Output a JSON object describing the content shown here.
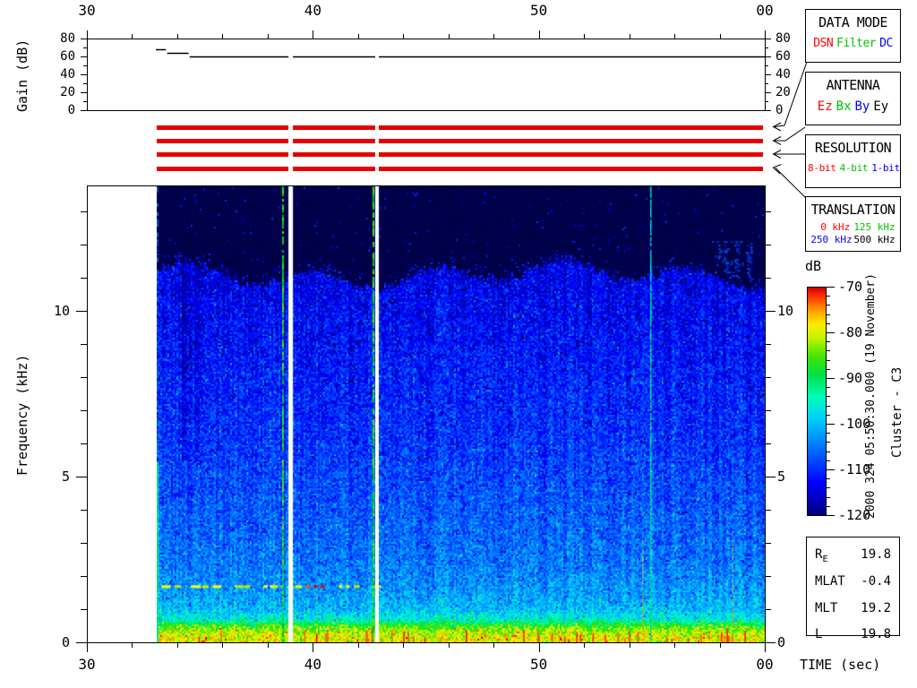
{
  "gain_panel": {
    "ylabel": "Gain (dB)",
    "yticks": [
      "80",
      "60",
      "40",
      "20",
      "0"
    ],
    "xticks": [
      "30",
      "40",
      "50",
      "00"
    ]
  },
  "spectrogram_panel": {
    "ylabel": "Frequency (kHz)",
    "yticks": [
      "10",
      "5",
      "0"
    ],
    "xticks": [
      "30",
      "40",
      "50",
      "00"
    ],
    "xlabel": "TIME (sec)"
  },
  "colorbar": {
    "title": "dB",
    "ticks": [
      "-70",
      "-80",
      "-90",
      "-100",
      "-110",
      "-120"
    ]
  },
  "side_annotations": {
    "timestamp": "2000 324 05:50:30.000 (19 November)",
    "spacecraft": "Cluster - C3"
  },
  "info_boxes": {
    "data_mode": {
      "title": "DATA MODE",
      "items": [
        {
          "label": "DSN",
          "color": "#ff0000"
        },
        {
          "label": "Filter",
          "color": "#00c000"
        },
        {
          "label": "DC",
          "color": "#0000ff"
        }
      ]
    },
    "antenna": {
      "title": "ANTENNA",
      "items": [
        {
          "label": "Ez",
          "color": "#ff0000"
        },
        {
          "label": "Bx",
          "color": "#00c000"
        },
        {
          "label": "By",
          "color": "#0000ff"
        },
        {
          "label": "Ey",
          "color": "#000000"
        }
      ]
    },
    "resolution": {
      "title": "RESOLUTION",
      "items": [
        {
          "label": "8-bit",
          "color": "#ff0000"
        },
        {
          "label": "4-bit",
          "color": "#00c000"
        },
        {
          "label": "1-bit",
          "color": "#0000ff"
        }
      ]
    },
    "translation": {
      "title": "TRANSLATION",
      "rows": [
        [
          {
            "label": "0 kHz",
            "color": "#ff0000"
          },
          {
            "label": "125 kHz",
            "color": "#00c000"
          }
        ],
        [
          {
            "label": "250 kHz",
            "color": "#0000ff"
          },
          {
            "label": "500 kHz",
            "color": "#000000"
          }
        ]
      ]
    }
  },
  "ephemeris": {
    "rows": [
      {
        "label": "R",
        "sub": "E",
        "value": "19.8"
      },
      {
        "label": "MLAT",
        "sub": "",
        "value": "-0.4"
      },
      {
        "label": "MLT",
        "sub": "",
        "value": "19.2"
      },
      {
        "label": "L",
        "sub": "",
        "value": "19.8"
      }
    ]
  },
  "status_bars": {
    "color": "#e60000",
    "count": 4
  },
  "chart_data": [
    {
      "type": "line",
      "name": "receiver-gain",
      "ylabel": "Gain (dB)",
      "xlim_sec": [
        30,
        60
      ],
      "ylim_db": [
        0,
        80
      ],
      "xtick_values_sec": [
        30,
        40,
        50,
        60
      ],
      "ytick_values_db": [
        80,
        60,
        40,
        20,
        0
      ],
      "minor_xtick_step_sec": 2,
      "minor_ytick_step_db": 10,
      "segments": [
        {
          "t": [
            33.05,
            33.5
          ],
          "db": 68
        },
        {
          "t": [
            33.55,
            34.5
          ],
          "db": 64
        },
        {
          "t": [
            34.55,
            38.92
          ],
          "db": 60
        },
        {
          "t": [
            39.12,
            42.76
          ],
          "db": 60
        },
        {
          "t": [
            42.92,
            60.0
          ],
          "db": 60
        }
      ]
    },
    {
      "type": "heatmap",
      "name": "wbd-spectrogram",
      "ylabel": "Frequency (kHz)",
      "xlabel": "TIME (sec)",
      "xlim_sec": [
        30,
        60
      ],
      "ylim_khz": [
        0,
        13.78
      ],
      "ytick_values_khz": [
        10,
        5,
        0
      ],
      "xtick_values_sec": [
        30,
        40,
        50,
        60
      ],
      "minor_ytick_step_khz": 1,
      "data_start_sec": 33.1,
      "noise_ceiling_khz": 11.1,
      "bottom_band_khz": 0.55,
      "background_profile_khz_db": [
        [
          0,
          -79
        ],
        [
          0.25,
          -80
        ],
        [
          0.5,
          -85
        ],
        [
          0.7,
          -95
        ],
        [
          1,
          -100
        ],
        [
          1.6,
          -102.5
        ],
        [
          2.4,
          -105
        ],
        [
          4,
          -107
        ],
        [
          6,
          -109.5
        ],
        [
          9,
          -112
        ],
        [
          11.3,
          -114
        ],
        [
          14,
          -115.5
        ]
      ],
      "data_gaps_sec": [
        [
          38.92,
          39.12
        ],
        [
          42.76,
          42.92
        ]
      ],
      "marker_lines_sec": [
        38.64,
        42.68
      ],
      "narrowband_line_sec": 54.95,
      "emission_line": {
        "freq_khz": 1.72,
        "t_start_sec": 33.3,
        "t_end_sec": 43.0
      },
      "interference_patch": {
        "t_sec": [
          57.8,
          59.4
        ],
        "f_khz": [
          11.0,
          12.1
        ]
      },
      "faint_vertical_lines_sec": [
        54.6,
        58.6
      ],
      "dark_streaks_sec": [
        [
          34.2,
          34.4
        ],
        [
          34.75,
          34.95
        ]
      ],
      "colorbar_db": {
        "min": -120,
        "max": -70,
        "tick_values": [
          -70,
          -80,
          -90,
          -100,
          -110,
          -120
        ],
        "minor_step": 2
      },
      "colormap": [
        [
          -0.13,
          0,
          0,
          40
        ],
        [
          0,
          0,
          0,
          125
        ],
        [
          0.14,
          0,
          0,
          255
        ],
        [
          0.3,
          0,
          120,
          255
        ],
        [
          0.42,
          0,
          205,
          255
        ],
        [
          0.52,
          0,
          255,
          185
        ],
        [
          0.62,
          0,
          225,
          70
        ],
        [
          0.7,
          70,
          230,
          0
        ],
        [
          0.78,
          195,
          245,
          0
        ],
        [
          0.84,
          255,
          235,
          0
        ],
        [
          0.9,
          255,
          160,
          0
        ],
        [
          0.96,
          255,
          55,
          0
        ],
        [
          1,
          215,
          0,
          0
        ]
      ]
    }
  ]
}
